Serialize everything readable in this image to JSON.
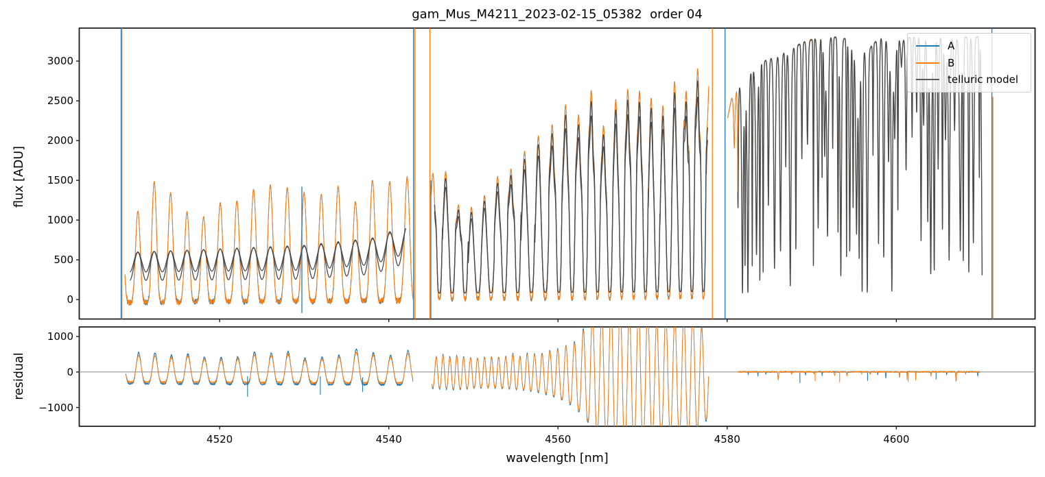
{
  "chart_data": {
    "type": "line",
    "title": "gam_Mus_M4211_2023-02-15_05382  order 04",
    "xlabel": "wavelength [nm]",
    "xlim": [
      4503.4,
      4616.4
    ],
    "xticks": [
      4520,
      4540,
      4560,
      4580,
      4600
    ],
    "panels": {
      "flux": {
        "ylabel": "flux [ADU]",
        "ylim": [
          -245,
          3415
        ],
        "yticks": [
          0,
          500,
          1000,
          1500,
          2000,
          2500,
          3000
        ]
      },
      "residual": {
        "ylabel": "residual",
        "ylim": [
          -1530,
          1270
        ],
        "yticks": [
          -1000,
          0,
          1000
        ],
        "zero_line": true
      }
    },
    "legend": {
      "position": "upper right",
      "entries": [
        {
          "label": "A",
          "color": "#1f77b4"
        },
        {
          "label": "B",
          "color": "#ff7f0e"
        },
        {
          "label": "telluric model",
          "color": "#5a5a5a"
        }
      ]
    },
    "colors": {
      "A": "#1f77b4",
      "B": "#ff7f0e",
      "model": "#4a4a4a",
      "zero_line": "#8a8a8a",
      "spine": "#1c1c1c",
      "text": "#000000"
    },
    "segments": [
      {
        "id": "segment-1",
        "type": "comb",
        "flux": {
          "xrange": [
            4508.8,
            4542.9
          ],
          "phase0": 0.45,
          "sharpness": 2.4,
          "period_env": [
            [
              4508,
              1.92
            ],
            [
              4542,
              2.05
            ]
          ],
          "peak_env": [
            [
              4508.8,
              1000
            ],
            [
              4510,
              1120
            ],
            [
              4512.5,
              1420
            ],
            [
              4515,
              1300
            ],
            [
              4517.5,
              1150
            ],
            [
              4519.5,
              1130
            ],
            [
              4521.5,
              1260
            ],
            [
              4523.5,
              1420
            ],
            [
              4525.5,
              1400
            ],
            [
              4527.5,
              1380
            ],
            [
              4529.5,
              1500
            ],
            [
              4531.5,
              1060
            ],
            [
              4533,
              1420
            ],
            [
              4535,
              1190
            ],
            [
              4537,
              1580
            ],
            [
              4538.5,
              1420
            ],
            [
              4540,
              1400
            ],
            [
              4541.3,
              1480
            ],
            [
              4542.6,
              1820
            ]
          ],
          "valley_env": [
            [
              4508.8,
              -35
            ],
            [
              4542.9,
              -15
            ]
          ],
          "peak_jitter": 0.12,
          "noise": 26,
          "seed": 3,
          "secondary": 0
        },
        "model": {
          "style": "sine",
          "xrange": [
            4509.4,
            4542.0
          ],
          "lines": [
            {
              "mid_env": [
                [
                  4509.4,
                  470
                ],
                [
                  4530,
                  520
                ],
                [
                  4538,
                  600
                ],
                [
                  4542,
                  740
                ]
              ],
              "amp_env": [
                [
                  4509.4,
                  125
                ],
                [
                  4542,
                  165
                ]
              ]
            },
            {
              "mid_env": [
                [
                  4509.4,
                  415
                ],
                [
                  4530,
                  470
                ],
                [
                  4538,
                  545
                ],
                [
                  4542,
                  690
                ]
              ],
              "amp_env": [
                [
                  4509.4,
                  175
                ],
                [
                  4542,
                  235
                ]
              ]
            }
          ]
        },
        "residual": {
          "style": "comb",
          "xrange": [
            4508.9,
            4542.85
          ],
          "phase0": 0.45,
          "sharpness": 2.2,
          "period_env": [
            [
              4508,
              1.92
            ],
            [
              4542,
              2.05
            ]
          ],
          "pos_env": [
            [
              4509,
              430
            ],
            [
              4512,
              470
            ],
            [
              4516,
              420
            ],
            [
              4519,
              300
            ],
            [
              4522,
              430
            ],
            [
              4526,
              470
            ],
            [
              4529,
              480
            ],
            [
              4531,
              300
            ],
            [
              4533,
              480
            ],
            [
              4535,
              430
            ],
            [
              4536.5,
              640
            ],
            [
              4538,
              540
            ],
            [
              4540,
              450
            ],
            [
              4542.6,
              540
            ]
          ],
          "neg_env": [
            [
              4509,
              -300
            ],
            [
              4542.8,
              -330
            ]
          ],
          "peak_jitter": 0.15,
          "noise": 26,
          "seed": 7,
          "ampA": 1.1,
          "ampB": 0.95
        }
      },
      {
        "id": "segment-2",
        "type": "comb",
        "flux": {
          "xrange": [
            4545.0,
            4577.85
          ],
          "phase0": 0.1,
          "sharpness": 1.55,
          "period_env": [
            [
              4545,
              1.5
            ],
            [
              4552,
              1.55
            ],
            [
              4558,
              1.65
            ],
            [
              4563,
              1.5
            ],
            [
              4568,
              1.4
            ],
            [
              4578,
              1.35
            ]
          ],
          "peak_env": [
            [
              4545.2,
              1600
            ],
            [
              4547,
              1500
            ],
            [
              4549,
              1280
            ],
            [
              4551,
              1350
            ],
            [
              4553,
              1380
            ],
            [
              4555,
              1500
            ],
            [
              4556.5,
              1800
            ],
            [
              4558,
              2100
            ],
            [
              4559.5,
              2350
            ],
            [
              4561,
              2750
            ],
            [
              4562.5,
              2650
            ],
            [
              4564,
              2880
            ],
            [
              4565.5,
              2350
            ],
            [
              4567,
              2300
            ],
            [
              4568.5,
              2800
            ],
            [
              4570,
              2550
            ],
            [
              4571.5,
              2350
            ],
            [
              4573,
              2300
            ],
            [
              4574.5,
              2750
            ],
            [
              4576,
              2800
            ],
            [
              4577.8,
              2850
            ]
          ],
          "valley_env": [
            [
              4545.2,
              5
            ],
            [
              4577.8,
              25
            ]
          ],
          "peak_jitter": 0.13,
          "noise": 22,
          "seed": 13,
          "secondary": 0.38
        },
        "model": {
          "style": "follow",
          "xrange": [
            4545.4,
            4577.7
          ],
          "peak_scales": [
            0.95,
            0.88
          ],
          "valley_offset": 75
        },
        "residual": {
          "style": "comb",
          "xrange": [
            4545.1,
            4577.8
          ],
          "phase0": 0.6,
          "sharpness": 1.25,
          "period_env": [
            [
              4545,
              0.8
            ],
            [
              4556,
              0.85
            ],
            [
              4560,
              0.95
            ],
            [
              4564,
              1.1
            ],
            [
              4578,
              1.05
            ]
          ],
          "pos_env": [
            [
              4545.2,
              420
            ],
            [
              4548,
              460
            ],
            [
              4551,
              400
            ],
            [
              4554,
              440
            ],
            [
              4556,
              470
            ],
            [
              4558,
              520
            ],
            [
              4560,
              640
            ],
            [
              4562,
              850
            ],
            [
              4563.5,
              1250
            ],
            [
              4565,
              1650
            ],
            [
              4567,
              1850
            ],
            [
              4569,
              1800
            ],
            [
              4571,
              1650
            ],
            [
              4573,
              1500
            ],
            [
              4575,
              1600
            ],
            [
              4576.5,
              1450
            ],
            [
              4577.8,
              1150
            ]
          ],
          "neg_env": [
            [
              4545.2,
              -430
            ],
            [
              4548,
              -470
            ],
            [
              4551,
              -420
            ],
            [
              4554,
              -450
            ],
            [
              4556,
              -490
            ],
            [
              4558,
              -560
            ],
            [
              4560,
              -700
            ],
            [
              4562,
              -950
            ],
            [
              4563.5,
              -1350
            ],
            [
              4565,
              -1750
            ],
            [
              4567,
              -1950
            ],
            [
              4569,
              -1900
            ],
            [
              4571,
              -1750
            ],
            [
              4573,
              -1600
            ],
            [
              4575,
              -1700
            ],
            [
              4576.5,
              -1550
            ],
            [
              4577.8,
              -1250
            ]
          ],
          "peak_jitter": 0.12,
          "noise": 24,
          "seed": 17,
          "ampA": 1.05,
          "ampB": 1.0
        }
      },
      {
        "id": "segment-3",
        "type": "absorption",
        "flux": {
          "xrange": [
            4580.05,
            4610.15
          ],
          "continuum_env": [
            [
              4580.05,
              2280
            ],
            [
              4580.5,
              2520
            ],
            [
              4581.2,
              2650
            ],
            [
              4582,
              2760
            ],
            [
              4583.5,
              2950
            ],
            [
              4585,
              3030
            ],
            [
              4587,
              3120
            ],
            [
              4589,
              3240
            ],
            [
              4591,
              3300
            ],
            [
              4593,
              3300
            ],
            [
              4595,
              3260
            ],
            [
              4596.5,
              3120
            ],
            [
              4598,
              3300
            ],
            [
              4600,
              3270
            ],
            [
              4602,
              3300
            ],
            [
              4604,
              3310
            ],
            [
              4606,
              3280
            ],
            [
              4608,
              3300
            ],
            [
              4610.1,
              3310
            ]
          ],
          "noise": 11,
          "seed": 23,
          "dips": {
            "start": 4580.5,
            "end": 4609.9,
            "spacing": [
              0.3,
              0.75
            ],
            "depth_pow": 0.5,
            "depth_max": 0.97,
            "width": [
              0.05,
              0.14
            ]
          }
        },
        "model": {
          "style": "clean",
          "xrange": [
            4581.25,
            4610.15
          ]
        },
        "residual": {
          "style": "noise",
          "xrange": [
            4581.3,
            4609.9
          ],
          "offset": 4,
          "noise": 15,
          "seed": 29,
          "spike_spacing": [
            0.6,
            2.0
          ],
          "spike_depth": [
            60,
            300
          ],
          "spike_width": [
            0.02,
            0.06
          ]
        }
      }
    ],
    "flux_spikes": [
      {
        "x": 4508.35,
        "series": "A"
      },
      {
        "x": 4508.45,
        "series": "B"
      },
      {
        "x": 4529.72,
        "series": "A",
        "y1": 1420,
        "y2": -170
      },
      {
        "x": 4542.92,
        "series": "A"
      },
      {
        "x": 4543.08,
        "series": "B"
      },
      {
        "x": 4544.85,
        "series": "B"
      },
      {
        "x": 4544.97,
        "series": "A",
        "y1": 1500
      },
      {
        "x": 4578.25,
        "series": "B"
      },
      {
        "x": 4579.75,
        "series": "A"
      },
      {
        "x": 4611.3,
        "series": "A"
      },
      {
        "x": 4611.42,
        "series": "B",
        "y1": 2550
      }
    ],
    "residual_spikes": [
      {
        "x": 4523.3,
        "series": "A",
        "y1": -120,
        "y2": -700
      },
      {
        "x": 4531.9,
        "series": "A",
        "y1": -120,
        "y2": -640
      },
      {
        "x": 4536.9,
        "series": "A",
        "y1": -150,
        "y2": -560
      },
      {
        "x": 4588.6,
        "series": "A",
        "y1": -20,
        "y2": -310
      },
      {
        "x": 4590.4,
        "series": "B",
        "y1": -20,
        "y2": -260
      },
      {
        "x": 4593.3,
        "series": "B",
        "y1": -20,
        "y2": -290
      },
      {
        "x": 4596.6,
        "series": "A",
        "y1": -20,
        "y2": -250
      },
      {
        "x": 4601.4,
        "series": "B",
        "y1": -20,
        "y2": -280
      },
      {
        "x": 4604.7,
        "series": "A",
        "y1": -20,
        "y2": -210
      },
      {
        "x": 4607.1,
        "series": "B",
        "y1": -20,
        "y2": -240
      }
    ]
  }
}
